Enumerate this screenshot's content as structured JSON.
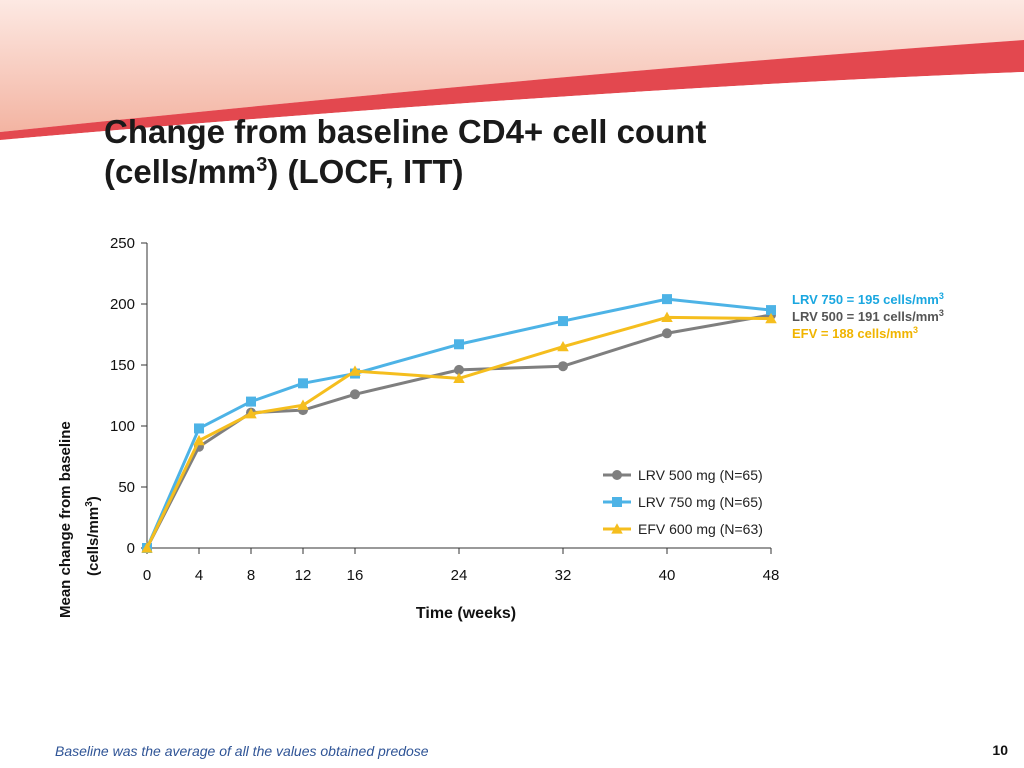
{
  "slide": {
    "title_line1": "Change from baseline CD4+ cell count",
    "title_line2_pre": "(cells/mm",
    "title_line2_sup": "3",
    "title_line2_post": ") (LOCF, ITT)",
    "footnote": "Baseline was the average of all the values obtained predose",
    "page_number": "10"
  },
  "chart_data": {
    "type": "line",
    "title": "",
    "xlabel": "Time (weeks)",
    "ylabel_line1": "Mean change from baseline",
    "ylabel_line2": "(cells/mm",
    "ylabel_sup": "3",
    "ylabel_close": ")",
    "x": [
      0,
      4,
      8,
      12,
      16,
      24,
      32,
      40,
      48
    ],
    "xlim": [
      0,
      48
    ],
    "ylim": [
      0,
      250
    ],
    "yticks": [
      0,
      50,
      100,
      150,
      200,
      250
    ],
    "grid": false,
    "legend_position": "bottom-right",
    "series": [
      {
        "name": "LRV 500 mg (N=65)",
        "color": "#7f7f7f",
        "marker": "circle",
        "values": [
          0,
          83,
          111,
          113,
          126,
          146,
          149,
          176,
          191
        ]
      },
      {
        "name": "LRV 750 mg (N=65)",
        "color": "#4db3e6",
        "marker": "square",
        "values": [
          0,
          98,
          120,
          135,
          143,
          167,
          186,
          204,
          195
        ]
      },
      {
        "name": "EFV 600 mg (N=63)",
        "color": "#f5be1e",
        "marker": "triangle",
        "values": [
          0,
          88,
          110,
          117,
          145,
          139,
          165,
          189,
          188
        ]
      }
    ],
    "annotations": [
      {
        "text": "LRV 750 = 195 cells/mm",
        "sup": "3",
        "color": "#1aa7e0"
      },
      {
        "text": "LRV 500 = 191 cells/mm",
        "sup": "3",
        "color": "#555555"
      },
      {
        "text": "EFV = 188 cells/mm",
        "sup": "3",
        "color": "#f0b400"
      }
    ]
  }
}
